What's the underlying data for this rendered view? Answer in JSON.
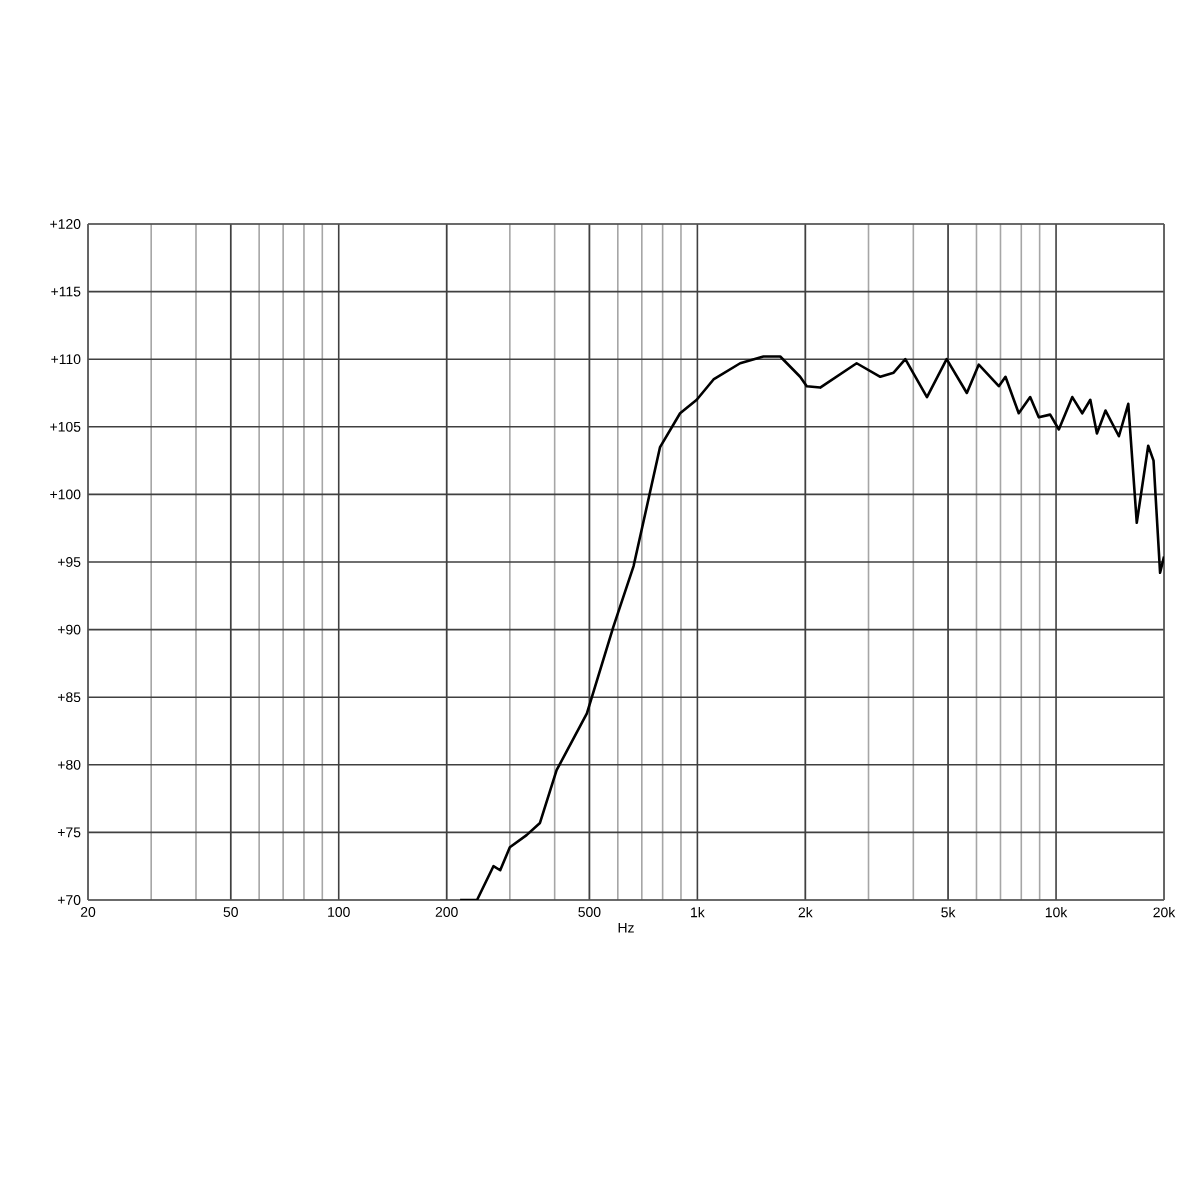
{
  "chart_data": {
    "type": "line",
    "xlabel": "Hz",
    "log": "x",
    "grid": true,
    "marker": "none",
    "line_style": "solid",
    "xlim": [
      20,
      20000
    ],
    "ylim": [
      70,
      120
    ],
    "xticks": [
      20,
      50,
      100,
      200,
      500,
      {
        "value": 1000,
        "label": "1k"
      },
      {
        "value": 2000,
        "label": "2k"
      },
      {
        "value": 5000,
        "label": "5k"
      },
      {
        "value": 10000,
        "label": "10k"
      },
      {
        "value": 20000,
        "label": "20k"
      }
    ],
    "yticks": [
      {
        "value": 70,
        "label": "+70"
      },
      {
        "value": 75,
        "label": "+75"
      },
      {
        "value": 80,
        "label": "+80"
      },
      {
        "value": 85,
        "label": "+85"
      },
      {
        "value": 90,
        "label": "+90"
      },
      {
        "value": 95,
        "label": "+95"
      },
      {
        "value": 100,
        "label": "+100"
      },
      {
        "value": 105,
        "label": "+105"
      },
      {
        "value": 110,
        "label": "+110"
      },
      {
        "value": 115,
        "label": "+115"
      },
      {
        "value": 120,
        "label": "+120"
      }
    ],
    "series": [
      {
        "color": "#000000",
        "x": [
          218,
          243,
          270,
          282,
          300,
          334,
          364,
          405,
          492,
          583,
          664,
          787,
          895,
          996,
          1109,
          1316,
          1528,
          1702,
          1934,
          2018,
          2200,
          2780,
          3236,
          3525,
          3800,
          4366,
          4954,
          5640,
          6090,
          6925,
          7228,
          7870,
          8470,
          8950,
          9630,
          10180,
          11100,
          11830,
          12460,
          13000,
          13740,
          14970,
          15900,
          16790,
          18070,
          18700,
          19500,
          20000
        ],
        "values": [
          70,
          70,
          72.5,
          72.2,
          73.9,
          74.8,
          75.7,
          79.6,
          83.8,
          90.2,
          94.7,
          103.5,
          106,
          107,
          108.5,
          109.7,
          110.2,
          110.2,
          108.7,
          108,
          107.9,
          109.7,
          108.7,
          109,
          110,
          107.2,
          110,
          107.5,
          109.6,
          108,
          108.7,
          106,
          107.2,
          105.7,
          105.9,
          104.8,
          107.2,
          106,
          107,
          104.5,
          106.2,
          104.3,
          106.7,
          97.9,
          103.6,
          102.5,
          94.2,
          95.4
        ]
      }
    ]
  }
}
